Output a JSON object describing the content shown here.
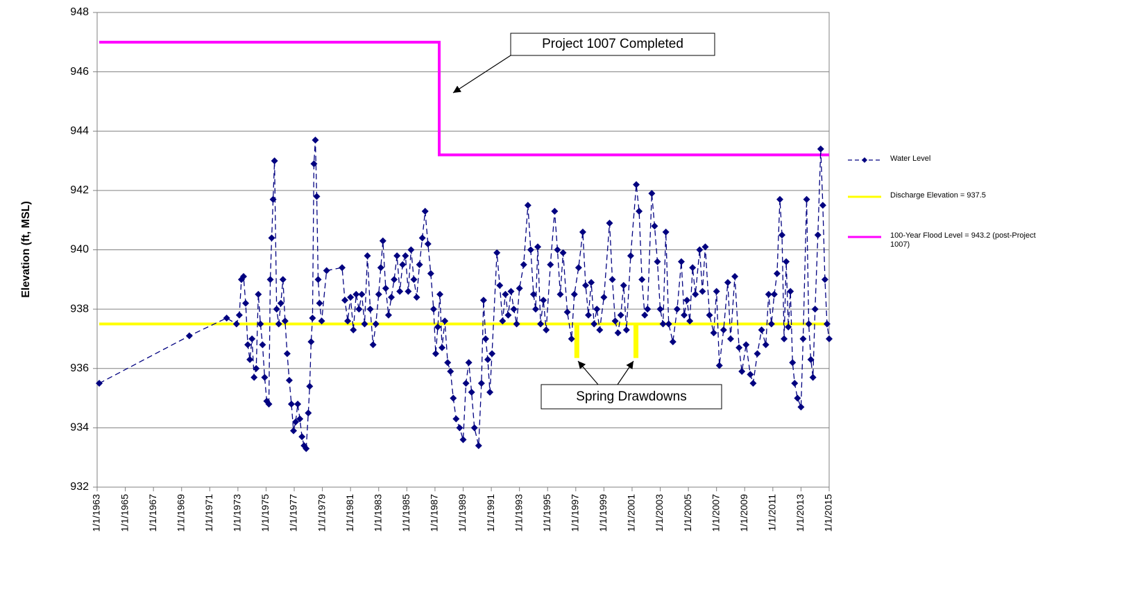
{
  "chart_data": {
    "type": "line",
    "ylabel": "Elevation (ft, MSL)",
    "xlim": [
      1963,
      2015
    ],
    "xticks": [
      {
        "value": 1963,
        "label": "1/1/1963"
      },
      {
        "value": 1965,
        "label": "1/1/1965"
      },
      {
        "value": 1967,
        "label": "1/1/1967"
      },
      {
        "value": 1969,
        "label": "1/1/1969"
      },
      {
        "value": 1971,
        "label": "1/1/1971"
      },
      {
        "value": 1973,
        "label": "1/1/1973"
      },
      {
        "value": 1975,
        "label": "1/1/1975"
      },
      {
        "value": 1977,
        "label": "1/1/1977"
      },
      {
        "value": 1979,
        "label": "1/1/1979"
      },
      {
        "value": 1981,
        "label": "1/1/1981"
      },
      {
        "value": 1983,
        "label": "1/1/1983"
      },
      {
        "value": 1985,
        "label": "1/1/1985"
      },
      {
        "value": 1987,
        "label": "1/1/1987"
      },
      {
        "value": 1989,
        "label": "1/1/1989"
      },
      {
        "value": 1991,
        "label": "1/1/1991"
      },
      {
        "value": 1993,
        "label": "1/1/1993"
      },
      {
        "value": 1995,
        "label": "1/1/1995"
      },
      {
        "value": 1997,
        "label": "1/1/1997"
      },
      {
        "value": 1999,
        "label": "1/1/1999"
      },
      {
        "value": 2001,
        "label": "1/1/2001"
      },
      {
        "value": 2003,
        "label": "1/1/2003"
      },
      {
        "value": 2005,
        "label": "1/1/2005"
      },
      {
        "value": 2007,
        "label": "1/1/2007"
      },
      {
        "value": 2009,
        "label": "1/1/2009"
      },
      {
        "value": 2011,
        "label": "1/1/2011"
      },
      {
        "value": 2013,
        "label": "1/1/2013"
      },
      {
        "value": 2015,
        "label": "1/1/2015"
      }
    ],
    "ylim": [
      932,
      948
    ],
    "yticks": [
      932,
      934,
      936,
      938,
      940,
      942,
      944,
      946,
      948
    ],
    "grid": true,
    "legend": "right",
    "annotations": [
      {
        "text": "Project 1007 Completed"
      },
      {
        "text": "Spring Drawdowns"
      }
    ],
    "series": [
      {
        "name": "Water Level",
        "color": "#000080",
        "dashed": true,
        "marker": "diamond",
        "x": [
          1963.15,
          1969.55,
          1972.2,
          1972.9,
          1973.1,
          1973.25,
          1973.4,
          1973.55,
          1973.7,
          1973.85,
          1974.0,
          1974.15,
          1974.3,
          1974.45,
          1974.6,
          1974.75,
          1974.9,
          1975.05,
          1975.2,
          1975.3,
          1975.4,
          1975.5,
          1975.6,
          1975.75,
          1975.9,
          1976.05,
          1976.2,
          1976.35,
          1976.5,
          1976.65,
          1976.8,
          1976.95,
          1977.1,
          1977.25,
          1977.4,
          1977.55,
          1977.7,
          1977.85,
          1978.0,
          1978.1,
          1978.2,
          1978.3,
          1978.4,
          1978.5,
          1978.6,
          1978.7,
          1978.8,
          1978.95,
          1979.3,
          1980.4,
          1980.6,
          1980.8,
          1981.0,
          1981.2,
          1981.4,
          1981.6,
          1981.8,
          1982.0,
          1982.2,
          1982.4,
          1982.6,
          1982.8,
          1983.0,
          1983.15,
          1983.3,
          1983.5,
          1983.7,
          1983.9,
          1984.1,
          1984.3,
          1984.5,
          1984.7,
          1984.9,
          1985.1,
          1985.3,
          1985.5,
          1985.7,
          1985.9,
          1986.1,
          1986.3,
          1986.5,
          1986.7,
          1986.9,
          1987.05,
          1987.2,
          1987.35,
          1987.5,
          1987.7,
          1987.9,
          1988.1,
          1988.3,
          1988.5,
          1988.75,
          1989.0,
          1989.2,
          1989.4,
          1989.6,
          1989.8,
          1990.1,
          1990.3,
          1990.45,
          1990.6,
          1990.75,
          1990.9,
          1991.05,
          1991.4,
          1991.6,
          1991.8,
          1992.0,
          1992.2,
          1992.4,
          1992.6,
          1992.8,
          1993.0,
          1993.3,
          1993.6,
          1993.8,
          1994.0,
          1994.15,
          1994.3,
          1994.5,
          1994.7,
          1994.9,
          1995.2,
          1995.5,
          1995.7,
          1995.9,
          1996.1,
          1996.4,
          1996.7,
          1996.9,
          1997.2,
          1997.5,
          1997.7,
          1997.9,
          1998.1,
          1998.3,
          1998.5,
          1998.7,
          1999.0,
          1999.4,
          1999.6,
          1999.8,
          2000.0,
          2000.2,
          2000.4,
          2000.6,
          2000.9,
          2001.3,
          2001.5,
          2001.7,
          2001.9,
          2002.1,
          2002.4,
          2002.6,
          2002.8,
          2003.0,
          2003.2,
          2003.4,
          2003.6,
          2003.9,
          2004.2,
          2004.5,
          2004.7,
          2004.9,
          2005.1,
          2005.3,
          2005.5,
          2005.8,
          2006.0,
          2006.2,
          2006.5,
          2006.8,
          2007.0,
          2007.2,
          2007.5,
          2007.8,
          2008.0,
          2008.3,
          2008.6,
          2008.8,
          2009.1,
          2009.4,
          2009.6,
          2009.9,
          2010.2,
          2010.5,
          2010.7,
          2010.9,
          2011.1,
          2011.3,
          2011.5,
          2011.65,
          2011.8,
          2011.95,
          2012.1,
          2012.25,
          2012.4,
          2012.55,
          2012.75,
          2013.0,
          2013.15,
          2013.4,
          2013.55,
          2013.7,
          2013.85,
          2014.0,
          2014.2,
          2014.4,
          2014.55,
          2014.7,
          2014.85,
          2015.0
        ],
        "values": [
          935.5,
          937.1,
          937.7,
          937.5,
          937.8,
          939.0,
          939.1,
          938.2,
          936.8,
          936.3,
          937.0,
          935.7,
          936.0,
          938.5,
          937.5,
          936.8,
          935.7,
          934.9,
          934.8,
          939.0,
          940.4,
          941.7,
          943.0,
          938.0,
          937.5,
          938.2,
          939.0,
          937.6,
          936.5,
          935.6,
          934.8,
          933.9,
          934.2,
          934.8,
          934.3,
          933.7,
          933.4,
          933.3,
          934.5,
          935.4,
          936.9,
          937.7,
          942.9,
          943.7,
          941.8,
          939.0,
          938.2,
          937.6,
          939.3,
          939.4,
          938.3,
          937.6,
          938.4,
          937.3,
          938.5,
          938.0,
          938.5,
          937.5,
          939.8,
          938.0,
          936.8,
          937.5,
          938.5,
          939.4,
          940.3,
          938.7,
          937.8,
          938.4,
          939.0,
          939.8,
          938.6,
          939.5,
          939.8,
          938.6,
          940.0,
          939.0,
          938.4,
          939.5,
          940.4,
          941.3,
          940.2,
          939.2,
          938.0,
          936.5,
          937.4,
          938.5,
          936.7,
          937.6,
          936.2,
          935.9,
          935.0,
          934.3,
          934.0,
          933.6,
          935.5,
          936.2,
          935.2,
          934.0,
          933.4,
          935.5,
          938.3,
          937.0,
          936.3,
          935.2,
          936.5,
          939.9,
          938.8,
          937.6,
          938.5,
          937.8,
          938.6,
          938.0,
          937.5,
          938.7,
          939.5,
          941.5,
          940.0,
          938.5,
          938.0,
          940.1,
          937.5,
          938.3,
          937.3,
          939.5,
          941.3,
          940.0,
          938.5,
          939.9,
          937.9,
          937.0,
          938.5,
          939.4,
          940.6,
          938.8,
          937.8,
          938.9,
          937.5,
          938.0,
          937.3,
          938.4,
          940.9,
          939.0,
          937.6,
          937.2,
          937.8,
          938.8,
          937.3,
          939.8,
          942.2,
          941.3,
          939.0,
          937.8,
          938.0,
          941.9,
          940.8,
          939.6,
          938.0,
          937.5,
          940.6,
          937.5,
          936.9,
          938.0,
          939.6,
          937.8,
          938.3,
          937.6,
          939.4,
          938.5,
          940.0,
          938.6,
          940.1,
          937.8,
          937.2,
          938.6,
          936.1,
          937.3,
          938.9,
          937.0,
          939.1,
          936.7,
          935.9,
          936.8,
          935.8,
          935.5,
          936.5,
          937.3,
          936.8,
          938.5,
          937.5,
          938.5,
          939.2,
          941.7,
          940.5,
          937.0,
          939.6,
          937.4,
          938.6,
          936.2,
          935.5,
          935.0,
          934.7,
          937.0,
          941.7,
          937.5,
          936.3,
          935.7,
          938.0,
          940.5,
          943.4,
          941.5,
          939.0,
          937.5,
          937.0
        ]
      },
      {
        "name": "Discharge Elevation = 937.5",
        "color": "#ffff00",
        "x": [
          1963.15,
          1997.0,
          1997.0,
          1997.15,
          1997.15,
          2001.2,
          2001.2,
          2001.35,
          2001.35,
          2015.0
        ],
        "values": [
          937.5,
          937.5,
          936.4,
          936.4,
          937.5,
          937.5,
          936.4,
          936.4,
          937.5,
          937.5
        ]
      },
      {
        "name": "100-Year Flood Level = 943.2 (post-Project 1007)",
        "color": "#ff00ff",
        "x": [
          1963.15,
          1987.3,
          1987.3,
          2015.0
        ],
        "values": [
          947.0,
          947.0,
          943.2,
          943.2
        ]
      }
    ]
  }
}
